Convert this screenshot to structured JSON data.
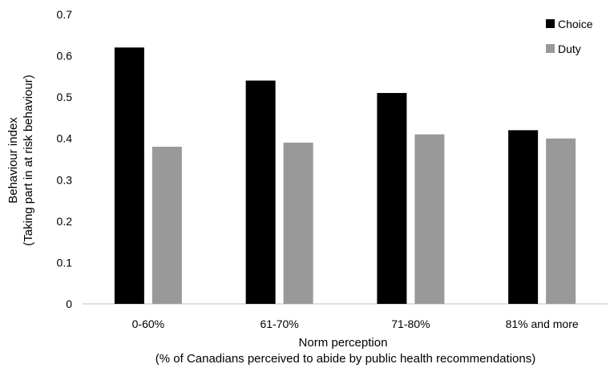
{
  "chart_data": {
    "type": "bar",
    "categories": [
      "0-60%",
      "61-70%",
      "71-80%",
      "81% and more"
    ],
    "series": [
      {
        "name": "Choice",
        "values": [
          0.62,
          0.54,
          0.51,
          0.42
        ],
        "color": "#000000"
      },
      {
        "name": "Duty",
        "values": [
          0.38,
          0.39,
          0.41,
          0.4
        ],
        "color": "#999999"
      }
    ],
    "xlabel": "Norm perception",
    "xlabel_sub": "(% of Canadians perceived to abide by public health recommendations)",
    "ylabel": "Behaviour index",
    "ylabel_sub": "(Taking part in at risk behaviour)",
    "ylim": [
      0,
      0.7
    ],
    "yticks": [
      "0",
      "0.1",
      "0.2",
      "0.3",
      "0.4",
      "0.5",
      "0.6",
      "0.7"
    ],
    "grid": false,
    "legend_position": "top-right"
  }
}
